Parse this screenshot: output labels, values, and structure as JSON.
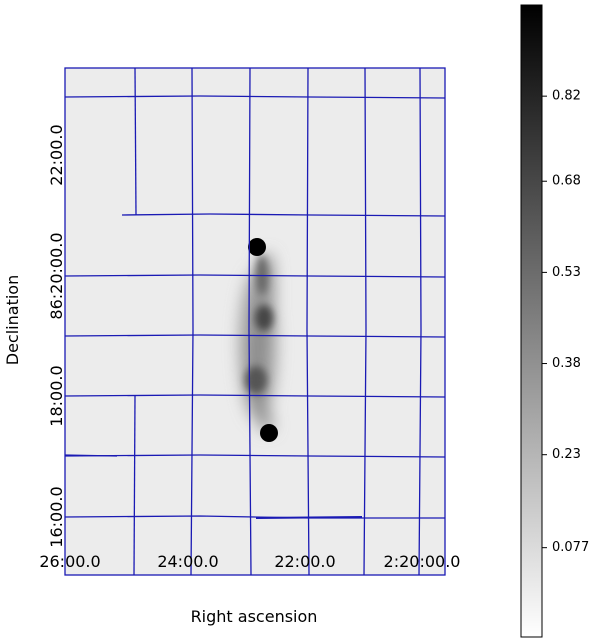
{
  "chart_data": {
    "type": "image",
    "xlabel": "Right ascension",
    "ylabel": "Declination",
    "x_tick_labels": [
      "26:00.0",
      "24:00.0",
      "22:00.0",
      "2:20:00.0"
    ],
    "y_tick_labels": [
      "16:00.0",
      "18:00.0",
      "86:20:00.0",
      "22:00.0"
    ],
    "colorbar": {
      "clim": [
        -0.07,
        0.97
      ],
      "ticks": [
        0.077,
        0.23,
        0.38,
        0.53,
        0.68,
        0.82
      ],
      "colormap": "gray_r"
    },
    "grid_color": "#1a1ab4"
  }
}
